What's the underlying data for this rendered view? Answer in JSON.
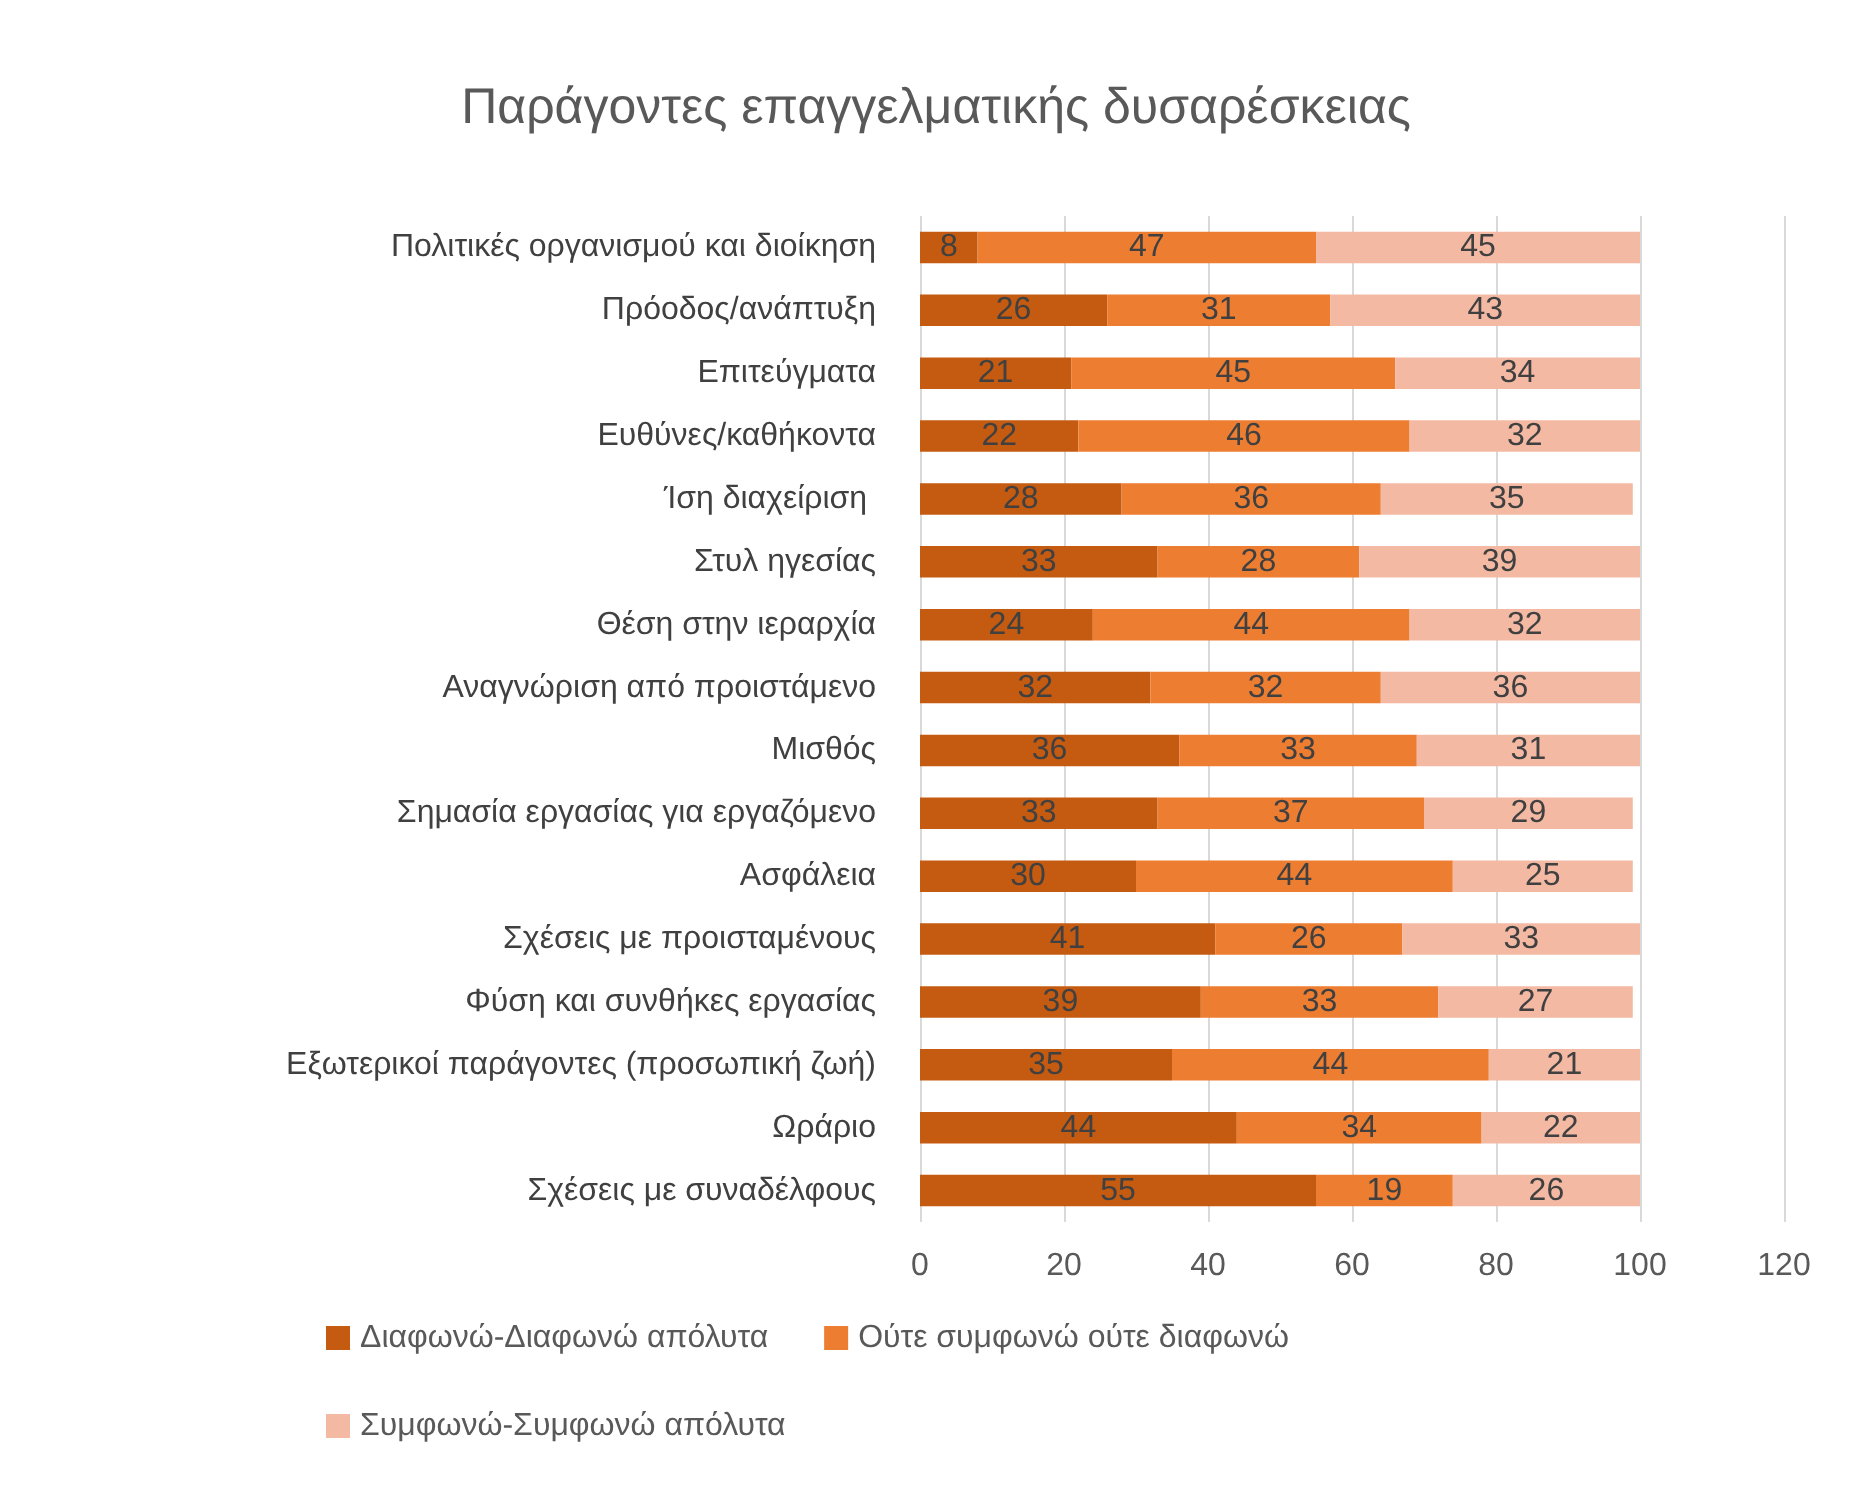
{
  "chart_data": {
    "type": "bar",
    "title": "Παράγοντες επαγγελματικής δυσαρέσκειας",
    "orientation": "horizontal",
    "stacked": true,
    "data_labels": true,
    "grid": "x",
    "legend": "bottom",
    "categories": [
      "Πολιτικές οργανισμού και διοίκηση",
      "Πρόοδος/ανάπτυξη",
      "Επιτεύγματα",
      "Ευθύνες/καθήκοντα",
      "Ίση διαχείριση ",
      "Στυλ ηγεσίας",
      "Θέση στην ιεραρχία",
      "Αναγνώριση από προιστάμενο",
      "Μισθός",
      "Σημασία εργασίας για εργαζόμενο",
      "Ασφάλεια",
      "Σχέσεις με προισταμένους",
      "Φύση και συνθήκες εργασίας",
      "Εξωτερικοί παράγοντες (προσωπική ζωή)",
      "Ωράριο",
      "Σχέσεις με συναδέλφους"
    ],
    "xlim": [
      0,
      120
    ],
    "xticks": [
      0,
      20,
      40,
      60,
      80,
      100,
      120
    ],
    "series": [
      {
        "name": "Διαφωνώ-Διαφωνώ απόλυτα",
        "color": "#c55a11",
        "values": [
          8,
          26,
          21,
          22,
          28,
          33,
          24,
          32,
          36,
          33,
          30,
          41,
          39,
          35,
          44,
          55
        ]
      },
      {
        "name": "Ούτε συμφωνώ ούτε διαφωνώ",
        "color": "#ed7d31",
        "values": [
          47,
          31,
          45,
          46,
          36,
          28,
          44,
          32,
          33,
          37,
          44,
          26,
          33,
          44,
          34,
          19
        ]
      },
      {
        "name": "Συμφωνώ-Συμφωνώ απόλυτα",
        "color": "#f4b9a3",
        "values": [
          45,
          43,
          34,
          32,
          35,
          39,
          32,
          36,
          31,
          29,
          25,
          33,
          27,
          21,
          22,
          26
        ]
      }
    ]
  }
}
